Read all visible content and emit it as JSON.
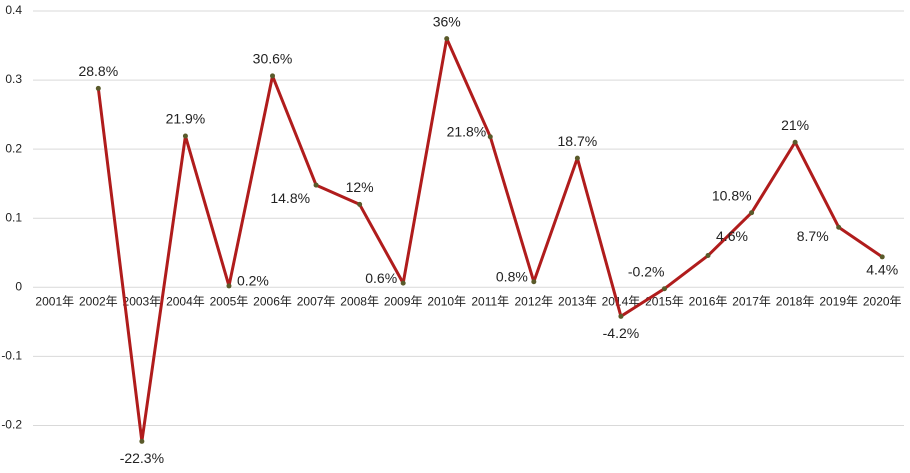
{
  "chart_data": {
    "type": "line",
    "categories": [
      "2001年",
      "2002年",
      "2003年",
      "2004年",
      "2005年",
      "2006年",
      "2007年",
      "2008年",
      "2009年",
      "2010年",
      "2011年",
      "2012年",
      "2013年",
      "2014年",
      "2015年",
      "2016年",
      "2017年",
      "2018年",
      "2019年",
      "2020年"
    ],
    "series": [
      {
        "color": "#b01c1c",
        "values": [
          null,
          0.288,
          -0.223,
          0.219,
          0.002,
          0.306,
          0.148,
          0.12,
          0.006,
          0.36,
          0.218,
          0.008,
          0.187,
          -0.042,
          -0.002,
          0.046,
          0.108,
          0.21,
          0.087,
          0.044
        ],
        "value_labels": [
          null,
          "28.8%",
          "-22.3%",
          "21.9%",
          "0.2%",
          "30.6%",
          "14.8%",
          "12%",
          "0.6%",
          "36%",
          "21.8%",
          "0.8%",
          "18.7%",
          "-4.2%",
          "-0.2%",
          "4.6%",
          "10.8%",
          "21%",
          "8.7%",
          "4.4%"
        ]
      }
    ],
    "ylim": [
      -0.25,
      0.4
    ],
    "yticks": [
      -0.2,
      -0.1,
      0,
      0.1,
      0.2,
      0.3,
      0.4
    ],
    "grid": true
  }
}
